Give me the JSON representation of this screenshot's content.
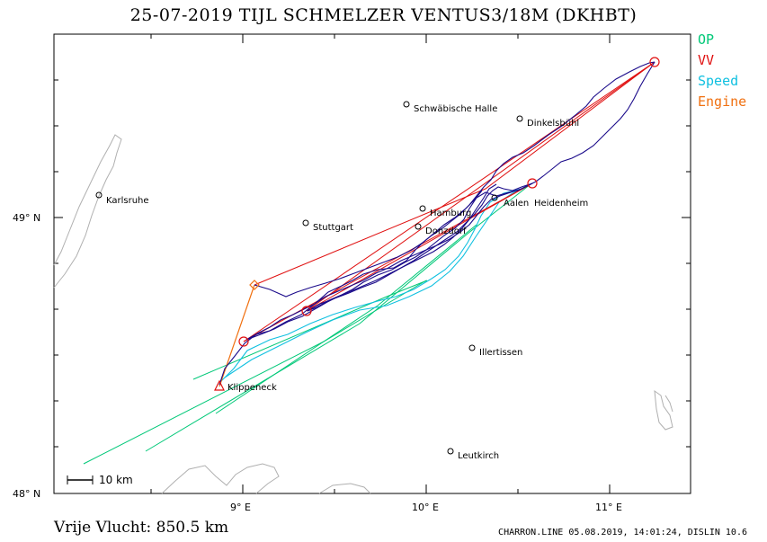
{
  "title": "25-07-2019   TIJL SCHMELZER   VENTUS3/18M (DKHBT)",
  "legend": [
    {
      "label": "OP",
      "color": "#00c878"
    },
    {
      "label": "VV",
      "color": "#e01010"
    },
    {
      "label": "Speed",
      "color": "#10c0e0"
    },
    {
      "label": "Engine",
      "color": "#f07010"
    }
  ],
  "axes": {
    "x_ticks": [
      "9° E",
      "10° E",
      "11° E"
    ],
    "y_ticks": [
      "49° N",
      "48° N"
    ]
  },
  "scale_bar": "10 km",
  "towns": [
    {
      "name": "Schwäbische Halle"
    },
    {
      "name": "Dinkelsbühl"
    },
    {
      "name": "Karlsruhe"
    },
    {
      "name": "Heidenheim"
    },
    {
      "name": "Stuttgart"
    },
    {
      "name": "Aalen"
    },
    {
      "name": "Hamburg"
    },
    {
      "name": "Donzdorf"
    },
    {
      "name": "Illertissen"
    },
    {
      "name": "Klippeneck"
    },
    {
      "name": "Leutkirch"
    }
  ],
  "footer": {
    "distance": "Vrije Vlucht:  850.5 km",
    "credits": "CHARRON.LINE 05.08.2019, 14:01:24, DISLIN 10.6"
  },
  "colors": {
    "track": "#1a0a8a",
    "vv": "#e01010",
    "op": "#00c878",
    "speed": "#10c0e0",
    "engine": "#f07010",
    "coast": "#b0b0b0"
  }
}
